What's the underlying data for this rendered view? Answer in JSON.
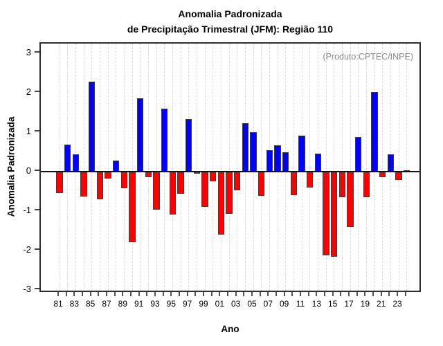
{
  "title": {
    "line1": "Anomalia Padronizada",
    "line2": "de Precipitação Trimestral (JFM): Região 110"
  },
  "annotation": "(Produto:CPTEC/INPE)",
  "colors": {
    "positive": "#0000ff",
    "negative": "#ff0000",
    "bar_border": "#3d3d3d",
    "annotation_text": "#8a8a8a",
    "gridline": "#d9d9d9",
    "axis": "#2e2e2e"
  },
  "chart_data": {
    "type": "bar",
    "title": "Anomalia Padronizada de Precipitação Trimestral (JFM): Região 110",
    "xlabel": "Ano",
    "ylabel": "Anomalia Padronizada",
    "ylim": [
      -3,
      3
    ],
    "yticks": [
      "-3",
      "-2",
      "-1",
      "0",
      "1",
      "2",
      "3"
    ],
    "grid": "vertical dashed gridline at every year",
    "legend": "none",
    "categories": [
      "81",
      "82",
      "83",
      "84",
      "85",
      "86",
      "87",
      "88",
      "89",
      "90",
      "91",
      "92",
      "93",
      "94",
      "95",
      "96",
      "97",
      "98",
      "99",
      "00",
      "01",
      "02",
      "03",
      "04",
      "05",
      "06",
      "07",
      "08",
      "09",
      "10",
      "11",
      "12",
      "13",
      "14",
      "15",
      "16",
      "17",
      "18",
      "19",
      "20",
      "21",
      "22",
      "23",
      "24"
    ],
    "x_tick_labels": [
      "81",
      "83",
      "85",
      "87",
      "89",
      "91",
      "93",
      "95",
      "97",
      "99",
      "01",
      "03",
      "05",
      "07",
      "09",
      "11",
      "13",
      "15",
      "17",
      "19",
      "21",
      "23"
    ],
    "values": [
      -0.54,
      0.68,
      0.44,
      -0.64,
      2.27,
      -0.7,
      -0.18,
      0.28,
      -0.42,
      -1.8,
      1.86,
      -0.14,
      -0.97,
      1.59,
      -1.09,
      -0.56,
      1.33,
      -0.05,
      -0.9,
      -0.25,
      -1.6,
      -1.08,
      -0.47,
      1.22,
      1.0,
      -0.61,
      0.54,
      0.67,
      0.49,
      -0.6,
      0.91,
      -0.4,
      0.46,
      -2.12,
      -2.16,
      -0.65,
      -1.41,
      0.88,
      -0.66,
      2.02,
      -0.15,
      0.43,
      -0.22,
      0.03
    ]
  }
}
